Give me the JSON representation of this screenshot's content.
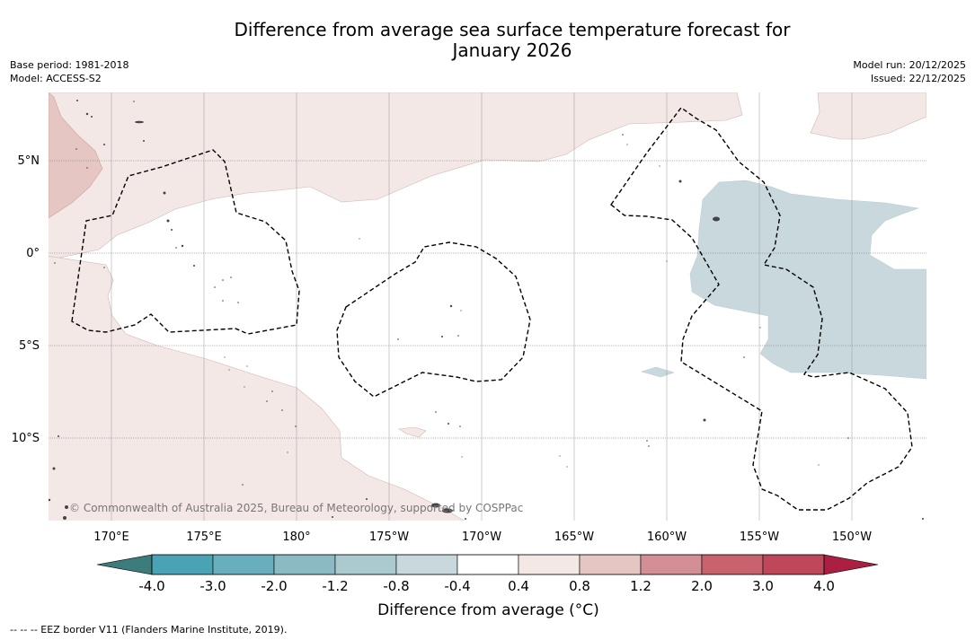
{
  "title": {
    "line1": "Difference from average sea surface temperature forecast for",
    "line2": "January 2026"
  },
  "meta_left": {
    "base_period": "Base period: 1981-2018",
    "model": "Model: ACCESS-S2"
  },
  "meta_right": {
    "model_run": "Model run: 20/12/2025",
    "issued": "Issued: 22/12/2025"
  },
  "map": {
    "latitude_labels": [
      "5°N",
      "0°",
      "5°S",
      "10°S"
    ],
    "longitude_labels": [
      "170°E",
      "175°E",
      "180°",
      "175°W",
      "170°W",
      "165°W",
      "160°W",
      "155°W",
      "150°W"
    ],
    "copyright": "© Commonwealth of Australia 2025, Bureau of Meteorology, supported by COSPPac",
    "colors": {
      "land": "#555555",
      "anomaly_0_4_to_0_8": "#f4e8e6",
      "anomaly_0_8_to_1_2": "#e6c6c2",
      "anomaly_neg0_8_to_neg0_4": "#c8d8dc",
      "grid": "#999999"
    }
  },
  "colorbar": {
    "tick_labels": [
      "-4.0",
      "-3.0",
      "-2.0",
      "-1.2",
      "-0.8",
      "-0.4",
      "0.4",
      "0.8",
      "1.2",
      "2.0",
      "3.0",
      "4.0"
    ],
    "segment_colors": [
      "#4aa3b4",
      "#69aebc",
      "#8bbac4",
      "#aacad0",
      "#c8d8dc",
      "#ffffff",
      "#f4e8e6",
      "#e6c6c2",
      "#d48f96",
      "#c8636e",
      "#be4759"
    ],
    "under_color": "#3d7c7c",
    "over_color": "#aa1f42",
    "label": "Difference from average (°C)"
  },
  "footnote": "-- -- -- EEZ border V11 (Flanders Marine Institute, 2019)."
}
